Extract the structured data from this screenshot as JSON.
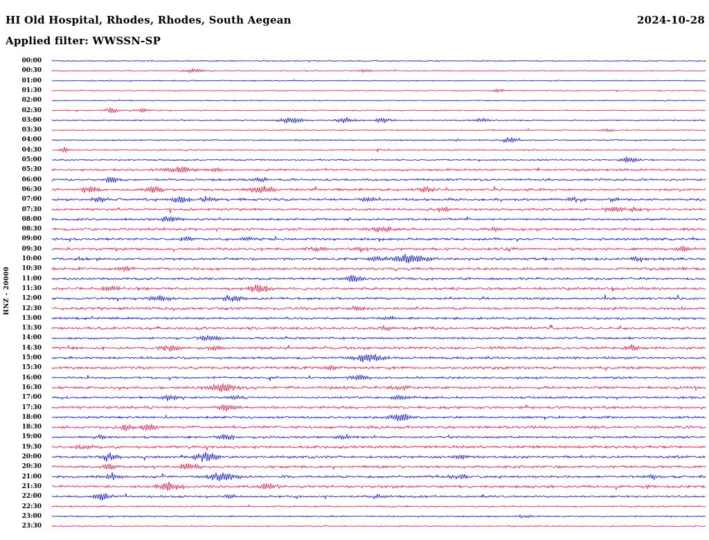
{
  "header": {
    "title": "HI Old Hospital, Rhodes, Rhodes, South Aegean",
    "date": "2024-10-28",
    "filter": "Applied filter: WWSSN-SP"
  },
  "chart_data": {
    "type": "line",
    "title": "HI Old Hospital, Rhodes, Rhodes, South Aegean",
    "subtitle": "Applied filter: WWSSN-SP",
    "date": "2024-10-28",
    "ylabel": "HNZ - 20000",
    "filter": "WWSSN-SP",
    "row_interval_minutes": 30,
    "legend_position": "none",
    "grid": false,
    "colors": {
      "blue": "#0a0ac8",
      "red": "#dc1446"
    },
    "rows": [
      {
        "time": "00:00",
        "color": "blue",
        "noise": 0.55,
        "events": []
      },
      {
        "time": "00:30",
        "color": "red",
        "noise": 0.55,
        "events": [
          {
            "p": 0.217,
            "a": 2.6,
            "w": 0.012
          },
          {
            "p": 0.48,
            "a": 1.6,
            "w": 0.008
          }
        ]
      },
      {
        "time": "01:00",
        "color": "blue",
        "noise": 0.55,
        "events": []
      },
      {
        "time": "01:30",
        "color": "red",
        "noise": 0.55,
        "events": [
          {
            "p": 0.683,
            "a": 2.4,
            "w": 0.006
          }
        ]
      },
      {
        "time": "02:00",
        "color": "blue",
        "noise": 0.55,
        "events": []
      },
      {
        "time": "02:30",
        "color": "red",
        "noise": 0.6,
        "events": [
          {
            "p": 0.092,
            "a": 3.2,
            "w": 0.008
          },
          {
            "p": 0.14,
            "a": 2.0,
            "w": 0.008
          }
        ]
      },
      {
        "time": "03:00",
        "color": "blue",
        "noise": 0.7,
        "events": [
          {
            "p": 0.367,
            "a": 3.6,
            "w": 0.014
          },
          {
            "p": 0.45,
            "a": 3.0,
            "w": 0.012
          },
          {
            "p": 0.506,
            "a": 2.6,
            "w": 0.01
          },
          {
            "p": 0.657,
            "a": 2.6,
            "w": 0.01
          }
        ]
      },
      {
        "time": "03:30",
        "color": "red",
        "noise": 0.65,
        "events": [
          {
            "p": 0.853,
            "a": 1.8,
            "w": 0.008
          }
        ]
      },
      {
        "time": "04:00",
        "color": "blue",
        "noise": 0.7,
        "events": [
          {
            "p": 0.7,
            "a": 4.2,
            "w": 0.008
          },
          {
            "p": 0.62,
            "a": 1.6,
            "w": 0.006
          }
        ]
      },
      {
        "time": "04:30",
        "color": "red",
        "noise": 0.7,
        "events": [
          {
            "p": 0.018,
            "a": 3.6,
            "w": 0.006
          }
        ]
      },
      {
        "time": "05:00",
        "color": "blue",
        "noise": 0.8,
        "events": [
          {
            "p": 0.884,
            "a": 3.6,
            "w": 0.01
          }
        ]
      },
      {
        "time": "05:30",
        "color": "red",
        "noise": 1.2,
        "events": [
          {
            "p": 0.194,
            "a": 3.6,
            "w": 0.018
          },
          {
            "p": 0.25,
            "a": 2.2,
            "w": 0.01
          }
        ]
      },
      {
        "time": "06:00",
        "color": "blue",
        "noise": 1.2,
        "events": [
          {
            "p": 0.09,
            "a": 3.0,
            "w": 0.01
          },
          {
            "p": 0.318,
            "a": 2.4,
            "w": 0.01
          }
        ]
      },
      {
        "time": "06:30",
        "color": "red",
        "noise": 1.3,
        "events": [
          {
            "p": 0.058,
            "a": 3.4,
            "w": 0.01
          },
          {
            "p": 0.156,
            "a": 4.0,
            "w": 0.012
          },
          {
            "p": 0.321,
            "a": 4.4,
            "w": 0.014
          },
          {
            "p": 0.574,
            "a": 3.0,
            "w": 0.01
          }
        ]
      },
      {
        "time": "07:00",
        "color": "blue",
        "noise": 1.3,
        "events": [
          {
            "p": 0.074,
            "a": 3.0,
            "w": 0.01
          },
          {
            "p": 0.198,
            "a": 3.6,
            "w": 0.012
          },
          {
            "p": 0.238,
            "a": 3.0,
            "w": 0.01
          },
          {
            "p": 0.484,
            "a": 2.6,
            "w": 0.01
          },
          {
            "p": 0.8,
            "a": 2.6,
            "w": 0.01
          },
          {
            "p": 0.863,
            "a": 2.2,
            "w": 0.008
          }
        ]
      },
      {
        "time": "07:30",
        "color": "red",
        "noise": 1.3,
        "events": [
          {
            "p": 0.598,
            "a": 3.0,
            "w": 0.01
          },
          {
            "p": 0.861,
            "a": 3.4,
            "w": 0.012
          },
          {
            "p": 0.893,
            "a": 2.6,
            "w": 0.008
          }
        ]
      },
      {
        "time": "08:00",
        "color": "blue",
        "noise": 1.2,
        "events": [
          {
            "p": 0.18,
            "a": 4.2,
            "w": 0.01
          }
        ]
      },
      {
        "time": "08:30",
        "color": "red",
        "noise": 1.4,
        "events": [
          {
            "p": 0.508,
            "a": 3.6,
            "w": 0.012
          },
          {
            "p": 0.675,
            "a": 2.6,
            "w": 0.01
          }
        ]
      },
      {
        "time": "09:00",
        "color": "blue",
        "noise": 1.4,
        "events": [
          {
            "p": 0.207,
            "a": 3.0,
            "w": 0.01
          },
          {
            "p": 0.3,
            "a": 3.0,
            "w": 0.01
          }
        ]
      },
      {
        "time": "09:30",
        "color": "red",
        "noise": 1.4,
        "events": [
          {
            "p": 0.41,
            "a": 3.0,
            "w": 0.01
          },
          {
            "p": 0.473,
            "a": 3.0,
            "w": 0.01
          },
          {
            "p": 0.964,
            "a": 3.4,
            "w": 0.01
          }
        ]
      },
      {
        "time": "10:00",
        "color": "blue",
        "noise": 1.4,
        "events": [
          {
            "p": 0.498,
            "a": 3.0,
            "w": 0.01
          },
          {
            "p": 0.551,
            "a": 5.0,
            "w": 0.022
          },
          {
            "p": 0.895,
            "a": 3.0,
            "w": 0.01
          }
        ]
      },
      {
        "time": "10:30",
        "color": "red",
        "noise": 1.5,
        "events": [
          {
            "p": 0.111,
            "a": 2.6,
            "w": 0.01
          }
        ]
      },
      {
        "time": "11:00",
        "color": "blue",
        "noise": 1.3,
        "events": [
          {
            "p": 0.461,
            "a": 4.2,
            "w": 0.012
          }
        ]
      },
      {
        "time": "11:30",
        "color": "red",
        "noise": 1.5,
        "events": [
          {
            "p": 0.09,
            "a": 2.6,
            "w": 0.01
          },
          {
            "p": 0.315,
            "a": 4.6,
            "w": 0.012
          }
        ]
      },
      {
        "time": "12:00",
        "color": "blue",
        "noise": 1.3,
        "events": [
          {
            "p": 0.166,
            "a": 3.6,
            "w": 0.012
          },
          {
            "p": 0.277,
            "a": 4.0,
            "w": 0.014
          }
        ]
      },
      {
        "time": "12:30",
        "color": "red",
        "noise": 1.5,
        "events": [
          {
            "p": 0.469,
            "a": 3.0,
            "w": 0.01
          }
        ]
      },
      {
        "time": "13:00",
        "color": "blue",
        "noise": 1.2,
        "events": [
          {
            "p": 0.514,
            "a": 2.2,
            "w": 0.008
          }
        ]
      },
      {
        "time": "13:30",
        "color": "red",
        "noise": 1.5,
        "events": [
          {
            "p": 0.512,
            "a": 3.0,
            "w": 0.01
          }
        ]
      },
      {
        "time": "14:00",
        "color": "blue",
        "noise": 1.2,
        "events": [
          {
            "p": 0.24,
            "a": 3.6,
            "w": 0.012
          }
        ]
      },
      {
        "time": "14:30",
        "color": "red",
        "noise": 1.5,
        "events": [
          {
            "p": 0.182,
            "a": 3.6,
            "w": 0.012
          },
          {
            "p": 0.247,
            "a": 3.0,
            "w": 0.01
          },
          {
            "p": 0.886,
            "a": 3.0,
            "w": 0.01
          }
        ]
      },
      {
        "time": "15:00",
        "color": "blue",
        "noise": 1.3,
        "events": [
          {
            "p": 0.482,
            "a": 5.2,
            "w": 0.018
          }
        ]
      },
      {
        "time": "15:30",
        "color": "red",
        "noise": 1.5,
        "events": [
          {
            "p": 0.427,
            "a": 3.0,
            "w": 0.01
          }
        ]
      },
      {
        "time": "16:00",
        "color": "blue",
        "noise": 1.2,
        "events": [
          {
            "p": 0.469,
            "a": 3.6,
            "w": 0.012
          }
        ]
      },
      {
        "time": "16:30",
        "color": "red",
        "noise": 1.5,
        "events": [
          {
            "p": 0.262,
            "a": 5.0,
            "w": 0.016
          },
          {
            "p": 0.537,
            "a": 3.0,
            "w": 0.01
          }
        ]
      },
      {
        "time": "17:00",
        "color": "blue",
        "noise": 1.2,
        "events": [
          {
            "p": 0.182,
            "a": 3.6,
            "w": 0.01
          },
          {
            "p": 0.283,
            "a": 3.0,
            "w": 0.01
          },
          {
            "p": 0.532,
            "a": 3.6,
            "w": 0.01
          }
        ]
      },
      {
        "time": "17:30",
        "color": "red",
        "noise": 1.4,
        "events": [
          {
            "p": 0.267,
            "a": 4.0,
            "w": 0.012
          }
        ]
      },
      {
        "time": "18:00",
        "color": "blue",
        "noise": 1.2,
        "events": [
          {
            "p": 0.532,
            "a": 4.6,
            "w": 0.012
          }
        ]
      },
      {
        "time": "18:30",
        "color": "red",
        "noise": 1.5,
        "events": [
          {
            "p": 0.117,
            "a": 3.6,
            "w": 0.012
          },
          {
            "p": 0.145,
            "a": 4.6,
            "w": 0.012
          }
        ]
      },
      {
        "time": "19:00",
        "color": "blue",
        "noise": 1.2,
        "events": [
          {
            "p": 0.076,
            "a": 2.6,
            "w": 0.008
          },
          {
            "p": 0.267,
            "a": 3.6,
            "w": 0.012
          },
          {
            "p": 0.447,
            "a": 3.0,
            "w": 0.01
          }
        ]
      },
      {
        "time": "19:30",
        "color": "red",
        "noise": 1.5,
        "events": [
          {
            "p": 0.048,
            "a": 2.6,
            "w": 0.01
          }
        ]
      },
      {
        "time": "20:00",
        "color": "blue",
        "noise": 1.3,
        "events": [
          {
            "p": 0.087,
            "a": 4.0,
            "w": 0.01
          },
          {
            "p": 0.235,
            "a": 5.0,
            "w": 0.014
          },
          {
            "p": 0.627,
            "a": 3.0,
            "w": 0.01
          }
        ]
      },
      {
        "time": "20:30",
        "color": "red",
        "noise": 1.4,
        "events": [
          {
            "p": 0.087,
            "a": 3.6,
            "w": 0.01
          },
          {
            "p": 0.209,
            "a": 4.0,
            "w": 0.012
          }
        ]
      },
      {
        "time": "21:00",
        "color": "blue",
        "noise": 1.3,
        "events": [
          {
            "p": 0.092,
            "a": 3.6,
            "w": 0.01
          },
          {
            "p": 0.259,
            "a": 5.0,
            "w": 0.018
          },
          {
            "p": 0.622,
            "a": 3.0,
            "w": 0.01
          },
          {
            "p": 0.918,
            "a": 2.6,
            "w": 0.008
          }
        ]
      },
      {
        "time": "21:30",
        "color": "red",
        "noise": 1.4,
        "events": [
          {
            "p": 0.177,
            "a": 5.6,
            "w": 0.014
          },
          {
            "p": 0.33,
            "a": 3.6,
            "w": 0.01
          },
          {
            "p": 0.911,
            "a": 2.6,
            "w": 0.008
          }
        ]
      },
      {
        "time": "22:00",
        "color": "blue",
        "noise": 1.1,
        "events": [
          {
            "p": 0.076,
            "a": 4.0,
            "w": 0.01
          },
          {
            "p": 0.272,
            "a": 2.6,
            "w": 0.008
          },
          {
            "p": 0.5,
            "a": 2.6,
            "w": 0.008
          }
        ]
      },
      {
        "time": "22:30",
        "color": "red",
        "noise": 0.8,
        "events": []
      },
      {
        "time": "23:00",
        "color": "blue",
        "noise": 0.7,
        "events": [
          {
            "p": 0.726,
            "a": 1.6,
            "w": 0.008
          }
        ]
      },
      {
        "time": "23:30",
        "color": "red",
        "noise": 0.7,
        "events": []
      }
    ]
  }
}
